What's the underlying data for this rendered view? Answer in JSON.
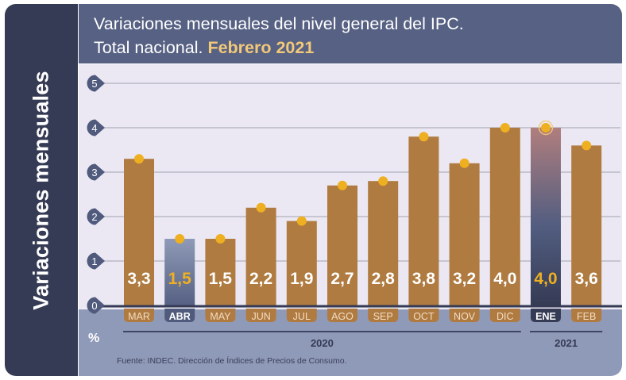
{
  "sidebar": {
    "label": "Variaciones mensuales"
  },
  "header": {
    "title_line1": "Variaciones mensuales del nivel general del IPC.",
    "title_line2_prefix": "Total nacional. ",
    "title_line2_highlight": "Febrero 2021"
  },
  "unit_label": "%",
  "source": "Fuente: INDEC. Dirección de Índices de Precios de Consumo.",
  "colors": {
    "bar": "#b07b40",
    "bar_highlight_top": "#b07e7e",
    "bar_highlight_mid": "#525d80",
    "bar_highlight_bottom": "#363b55",
    "abr_bar_top": "#8f9ab8",
    "abr_bar_bottom": "#566183",
    "dot": "#eeb021",
    "value_label": "#ffffff",
    "value_label_highlight": "#eeb021",
    "axis_badge": "#4f5a7c",
    "month_tag": "#b07b40",
    "month_tag_text": "#f1dcc3",
    "month_tag_highlight": "#363b55",
    "month_tag_abr": "#4f5a7c"
  },
  "chart_data": {
    "type": "bar",
    "title": "Variaciones mensuales del nivel general del IPC. Total nacional. Febrero 2021",
    "ylabel": "Variaciones mensuales",
    "yunit": "%",
    "ylim": [
      0,
      5
    ],
    "yticks": [
      "0",
      "1",
      "2",
      "3",
      "4",
      "5"
    ],
    "grid": true,
    "categories": [
      "MAR",
      "ABR",
      "MAY",
      "JUN",
      "JUL",
      "AGO",
      "SEP",
      "OCT",
      "NOV",
      "DIC",
      "ENE",
      "FEB"
    ],
    "values": [
      3.3,
      1.5,
      1.5,
      2.2,
      1.9,
      2.7,
      2.8,
      3.8,
      3.2,
      4.0,
      4.0,
      3.6
    ],
    "value_labels": [
      "3,3",
      "1,5",
      "1,5",
      "2,2",
      "1,9",
      "2,7",
      "2,8",
      "3,8",
      "3,2",
      "4,0",
      "4,0",
      "3,6"
    ],
    "highlighted": [
      "ABR",
      "ENE"
    ],
    "year_groups": [
      {
        "label": "2020",
        "from": "MAR",
        "to": "DIC"
      },
      {
        "label": "2021",
        "from": "ENE",
        "to": "FEB"
      }
    ]
  }
}
